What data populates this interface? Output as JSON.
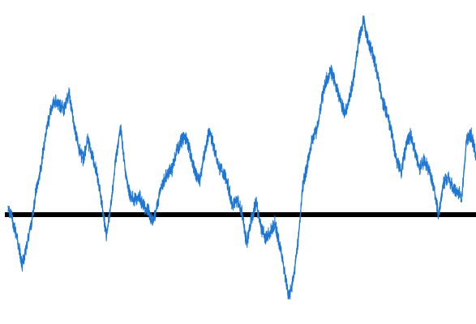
{
  "chart_data": {
    "type": "line",
    "title": "",
    "xlabel": "",
    "ylabel": "",
    "grid": false,
    "legend": "none",
    "xlim": [
      0,
      100
    ],
    "ylim": [
      -2.5,
      5
    ],
    "reference_line": {
      "y": 0,
      "color": "#000000"
    },
    "series": [
      {
        "color": "#1f77d4",
        "points": [
          [
            0,
            0.2
          ],
          [
            1,
            -0.15
          ],
          [
            2,
            -0.6
          ],
          [
            3,
            -1.2
          ],
          [
            4,
            -0.7
          ],
          [
            5,
            -0.2
          ],
          [
            6,
            0.6
          ],
          [
            7,
            1.1
          ],
          [
            8,
            1.9
          ],
          [
            9,
            2.4
          ],
          [
            10,
            2.7
          ],
          [
            11,
            2.6
          ],
          [
            12,
            2.5
          ],
          [
            13,
            2.9
          ],
          [
            14,
            2.2
          ],
          [
            15,
            1.6
          ],
          [
            16,
            1.3
          ],
          [
            17,
            1.75
          ],
          [
            18,
            1.4
          ],
          [
            19,
            0.95
          ],
          [
            20,
            0.3
          ],
          [
            21,
            -0.5
          ],
          [
            22,
            0.25
          ],
          [
            23,
            1.3
          ],
          [
            24,
            2.1
          ],
          [
            25,
            1.1
          ],
          [
            26,
            0.5
          ],
          [
            27,
            0.35
          ],
          [
            28,
            0.45
          ],
          [
            29,
            0.2
          ],
          [
            30,
            0.1
          ],
          [
            31,
            -0.2
          ],
          [
            32,
            0.3
          ],
          [
            33,
            0.75
          ],
          [
            34,
            1.0
          ],
          [
            35,
            1.05
          ],
          [
            36,
            1.5
          ],
          [
            37,
            1.75
          ],
          [
            38,
            1.85
          ],
          [
            39,
            1.45
          ],
          [
            40,
            0.95
          ],
          [
            41,
            0.8
          ],
          [
            42,
            1.5
          ],
          [
            43,
            2.0
          ],
          [
            44,
            1.6
          ],
          [
            45,
            1.1
          ],
          [
            46,
            1.0
          ],
          [
            47,
            0.7
          ],
          [
            48,
            0.2
          ],
          [
            49,
            0.35
          ],
          [
            50,
            0.05
          ],
          [
            51,
            -0.7
          ],
          [
            52,
            -0.1
          ],
          [
            53,
            0.3
          ],
          [
            54,
            -0.3
          ],
          [
            55,
            -0.55
          ],
          [
            56,
            -0.4
          ],
          [
            57,
            -0.2
          ],
          [
            58,
            -0.7
          ],
          [
            59,
            -1.3
          ],
          [
            60,
            -2.0
          ],
          [
            61,
            -1.5
          ],
          [
            62,
            -0.6
          ],
          [
            63,
            0.7
          ],
          [
            64,
            1.2
          ],
          [
            65,
            1.8
          ],
          [
            66,
            2.0
          ],
          [
            67,
            2.7
          ],
          [
            68,
            3.2
          ],
          [
            69,
            3.4
          ],
          [
            70,
            3.1
          ],
          [
            71,
            2.7
          ],
          [
            72,
            2.4
          ],
          [
            73,
            2.8
          ],
          [
            74,
            3.3
          ],
          [
            75,
            4.2
          ],
          [
            76,
            4.6
          ],
          [
            77,
            4.1
          ],
          [
            78,
            3.8
          ],
          [
            79,
            3.3
          ],
          [
            80,
            2.7
          ],
          [
            81,
            2.4
          ],
          [
            82,
            1.9
          ],
          [
            83,
            1.3
          ],
          [
            84,
            1.0
          ],
          [
            85,
            1.6
          ],
          [
            86,
            1.9
          ],
          [
            87,
            1.5
          ],
          [
            88,
            1.1
          ],
          [
            89,
            1.3
          ],
          [
            90,
            1.0
          ],
          [
            91,
            0.65
          ],
          [
            92,
            0.0
          ],
          [
            93,
            0.75
          ],
          [
            94,
            0.9
          ],
          [
            95,
            0.65
          ],
          [
            96,
            0.55
          ],
          [
            97,
            0.45
          ],
          [
            98,
            1.8
          ],
          [
            99,
            1.9
          ],
          [
            100,
            1.4
          ]
        ]
      }
    ]
  }
}
